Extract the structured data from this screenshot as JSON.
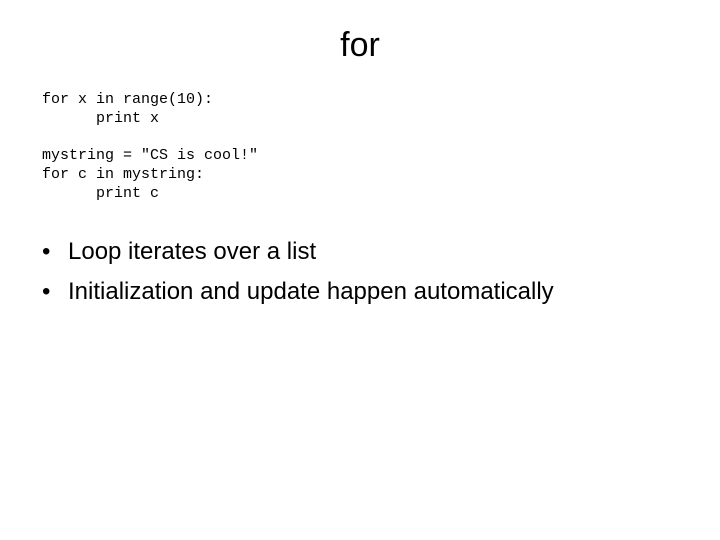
{
  "title": "for",
  "code": {
    "lines": [
      "for x in range(10):",
      "      print x",
      "",
      "mystring = \"CS is cool!\"",
      "for c in mystring:",
      "      print c"
    ]
  },
  "bullets": [
    "Loop iterates over a list",
    "Initialization and update happen automatically"
  ],
  "style": {
    "background_color": "#ffffff",
    "text_color": "#000000",
    "title_fontsize": 34,
    "body_fontsize": 24,
    "code_fontsize": 15,
    "code_font": "Courier New",
    "body_font": "Arial",
    "bullet_char": "•"
  }
}
